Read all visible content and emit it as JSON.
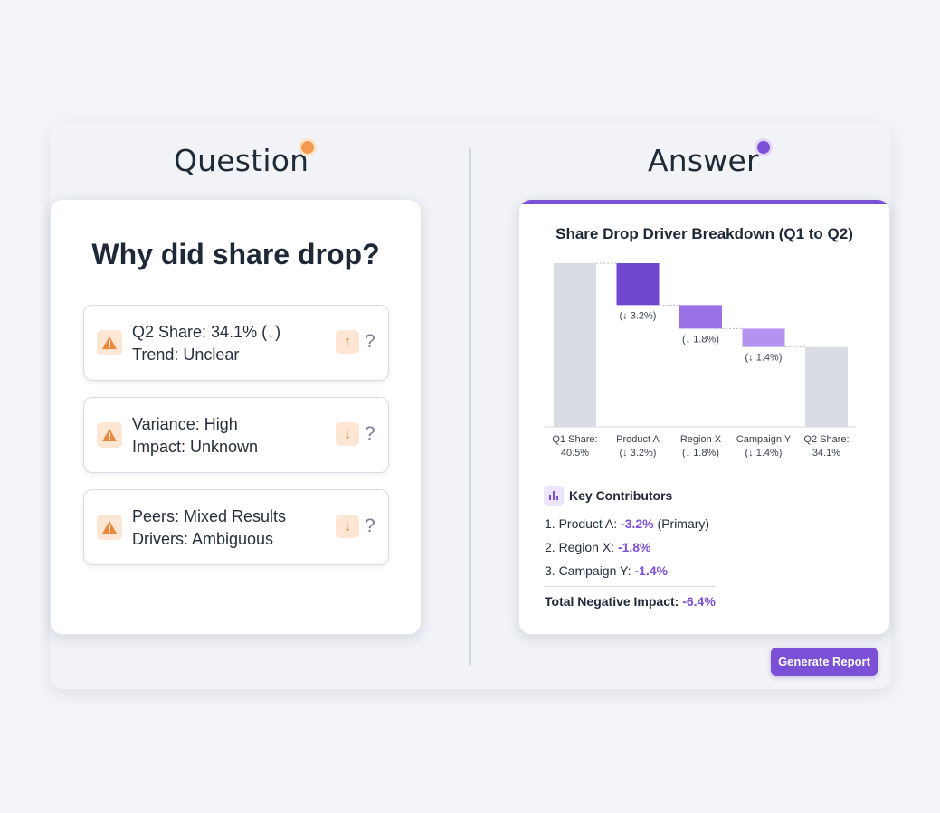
{
  "question_heading": "Question",
  "answer_heading": "Answer",
  "question_card": {
    "title": "Why did share drop?",
    "issues": [
      {
        "line1": "Q2 Share: 34.1% (",
        "line1_arrow": "↓",
        "line1_suffix": ")",
        "line2": "Trend: Unclear",
        "trend_icon": "↑",
        "mark": "?"
      },
      {
        "line1": "Variance: High",
        "line2": "Impact: Unknown",
        "trend_icon": "↓",
        "mark": "?"
      },
      {
        "line1": "Peers: Mixed Results",
        "line2": "Drivers: Ambiguous",
        "trend_icon": "↓",
        "mark": "?"
      }
    ]
  },
  "answer_card": {
    "key_contributors": {
      "title": "Key Contributors",
      "items": [
        {
          "label": "1. Product A: ",
          "value": "-3.2%",
          "note": " (Primary)"
        },
        {
          "label": "2. Region X: ",
          "value": "-1.8%",
          "note": ""
        },
        {
          "label": "3. Campaign Y: ",
          "value": "-1.4%",
          "note": ""
        }
      ],
      "total_label": "Total Negative Impact: ",
      "total_value": "-6.4%"
    }
  },
  "generate_button": "Generate Report",
  "colors": {
    "accent": "#7b4fd6",
    "warning": "#e8893d",
    "down_red": "#d92d2d",
    "total_bar": "#d9dce2"
  },
  "chart_data": {
    "type": "bar",
    "title": "Share Drop Driver Breakdown (Q1 to Q2)",
    "subtype": "waterfall",
    "categories": [
      "Q1 Share:",
      "Product A",
      "Region X",
      "Campaign Y",
      "Q2 Share:"
    ],
    "category_values": [
      "40.5%",
      "(↓ 3.2%)",
      "(↓ 1.8%)",
      "(↓ 1.4%)",
      "34.1%"
    ],
    "values": [
      40.5,
      -3.2,
      -1.8,
      -1.4,
      34.1
    ],
    "kinds": [
      "total",
      "delta",
      "delta",
      "delta",
      "total"
    ],
    "bar_labels": [
      "",
      "(↓ 3.2%)",
      "(↓ 1.8%)",
      "(↓ 1.4%)",
      ""
    ],
    "ylim": [
      28,
      40.5
    ],
    "bar_colors": [
      "#d9dce2",
      "#7048cf",
      "#9b72e6",
      "#b393ef",
      "#d9dce2"
    ]
  }
}
